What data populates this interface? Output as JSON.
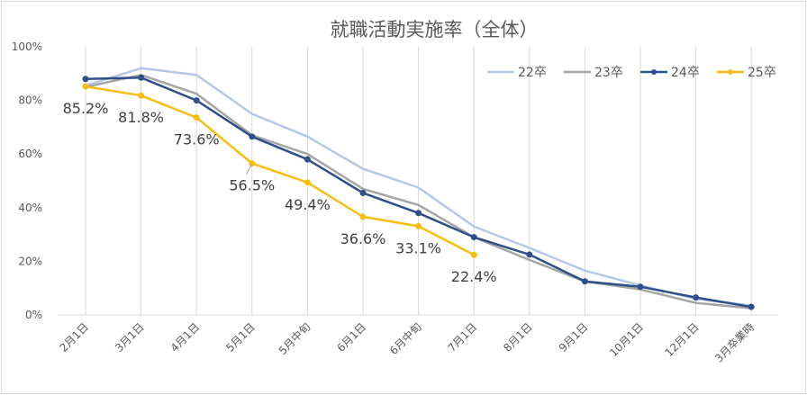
{
  "chart_data": {
    "type": "line",
    "title": "就職活動実施率（全体）",
    "xlabel": "",
    "ylabel": "",
    "ylim": [
      0,
      100
    ],
    "y_ticks": [
      "0%",
      "20%",
      "40%",
      "60%",
      "80%",
      "100%"
    ],
    "categories": [
      "2月1日",
      "3月1日",
      "4月1日",
      "5月1日",
      "5月中旬",
      "6月1日",
      "6月中旬",
      "7月1日",
      "8月1日",
      "9月1日",
      "10月1日",
      "12月1日",
      "3月卒業時"
    ],
    "grid": "vertical",
    "legend_position": "top-right",
    "series": [
      {
        "name": "22卒",
        "color": "#b4c7e7",
        "markers": false,
        "values": [
          85.5,
          92.0,
          89.5,
          75.0,
          66.5,
          54.5,
          47.5,
          33.0,
          25.0,
          16.5,
          11.0,
          6.0,
          3.5
        ]
      },
      {
        "name": "23卒",
        "color": "#a5a5a5",
        "markers": false,
        "values": [
          85.0,
          89.5,
          82.5,
          67.0,
          60.0,
          47.0,
          41.0,
          29.0,
          20.5,
          12.5,
          9.5,
          4.5,
          2.5
        ]
      },
      {
        "name": "24卒",
        "color": "#2f4f8a",
        "markers": true,
        "values": [
          88.0,
          88.5,
          80.0,
          66.5,
          58.0,
          45.5,
          38.0,
          29.0,
          22.5,
          12.5,
          10.5,
          6.5,
          3.0
        ]
      },
      {
        "name": "25卒",
        "color": "#f5be16",
        "markers": true,
        "values": [
          85.2,
          81.8,
          73.6,
          56.5,
          49.4,
          36.6,
          33.1,
          22.4,
          null,
          null,
          null,
          null,
          null
        ],
        "data_labels": [
          "85.2%",
          "81.8%",
          "73.6%",
          "56.5%",
          "49.4%",
          "36.6%",
          "33.1%",
          "22.4%"
        ]
      }
    ]
  }
}
